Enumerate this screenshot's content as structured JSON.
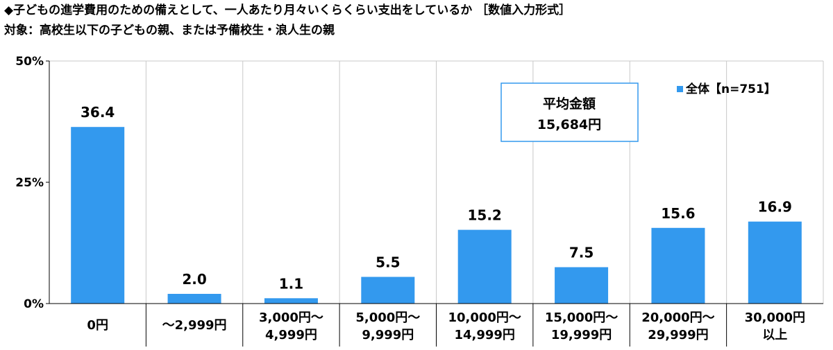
{
  "title_line1": "◆子どもの進学費用のための備えとして、一人あたり月々いくらくらい支出をしているか ［数値入力形式］",
  "title_line2": "対象：高校生以下の子どもの親、または予備校生・浪人生の親",
  "average_box": {
    "label": "平均金額",
    "value": "15,684円"
  },
  "colors": {
    "bar": "#3399ee",
    "grid": "#c8c8c8",
    "axis": "#000000"
  },
  "chart_data": {
    "type": "bar",
    "categories": [
      [
        "0円"
      ],
      [
        "～2,999円"
      ],
      [
        "3,000円～",
        "4,999円"
      ],
      [
        "5,000円～",
        "9,999円"
      ],
      [
        "10,000円～",
        "14,999円"
      ],
      [
        "15,000円～",
        "19,999円"
      ],
      [
        "20,000円～",
        "29,999円"
      ],
      [
        "30,000円",
        "以上"
      ]
    ],
    "series": [
      {
        "name": "全体【n=751】",
        "values": [
          36.4,
          2.0,
          1.1,
          5.5,
          15.2,
          7.5,
          15.6,
          16.9
        ]
      }
    ],
    "value_labels": [
      "36.4",
      "2.0",
      "1.1",
      "5.5",
      "15.2",
      "7.5",
      "15.6",
      "16.9"
    ],
    "yticks": [
      "0%",
      "25%",
      "50%"
    ],
    "ylim": [
      0,
      50
    ],
    "grid": "vertical separators",
    "legend": "top-right"
  }
}
